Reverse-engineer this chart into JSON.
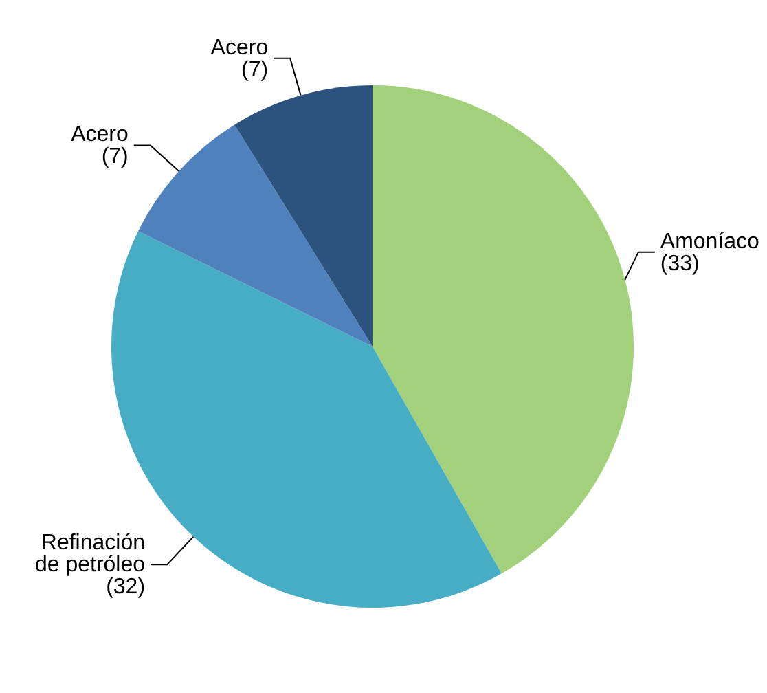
{
  "chart_data": {
    "type": "pie",
    "categories": [
      "Amoníaco",
      "Refinación de petróleo",
      "Acero",
      "Acero"
    ],
    "values": [
      33,
      32,
      7,
      7
    ],
    "value_labels": [
      "(33)",
      "(32)",
      "(7)",
      "(7)"
    ],
    "colors": [
      "#a3d07b",
      "#47adc5",
      "#4f81bd",
      "#2b537e"
    ]
  }
}
